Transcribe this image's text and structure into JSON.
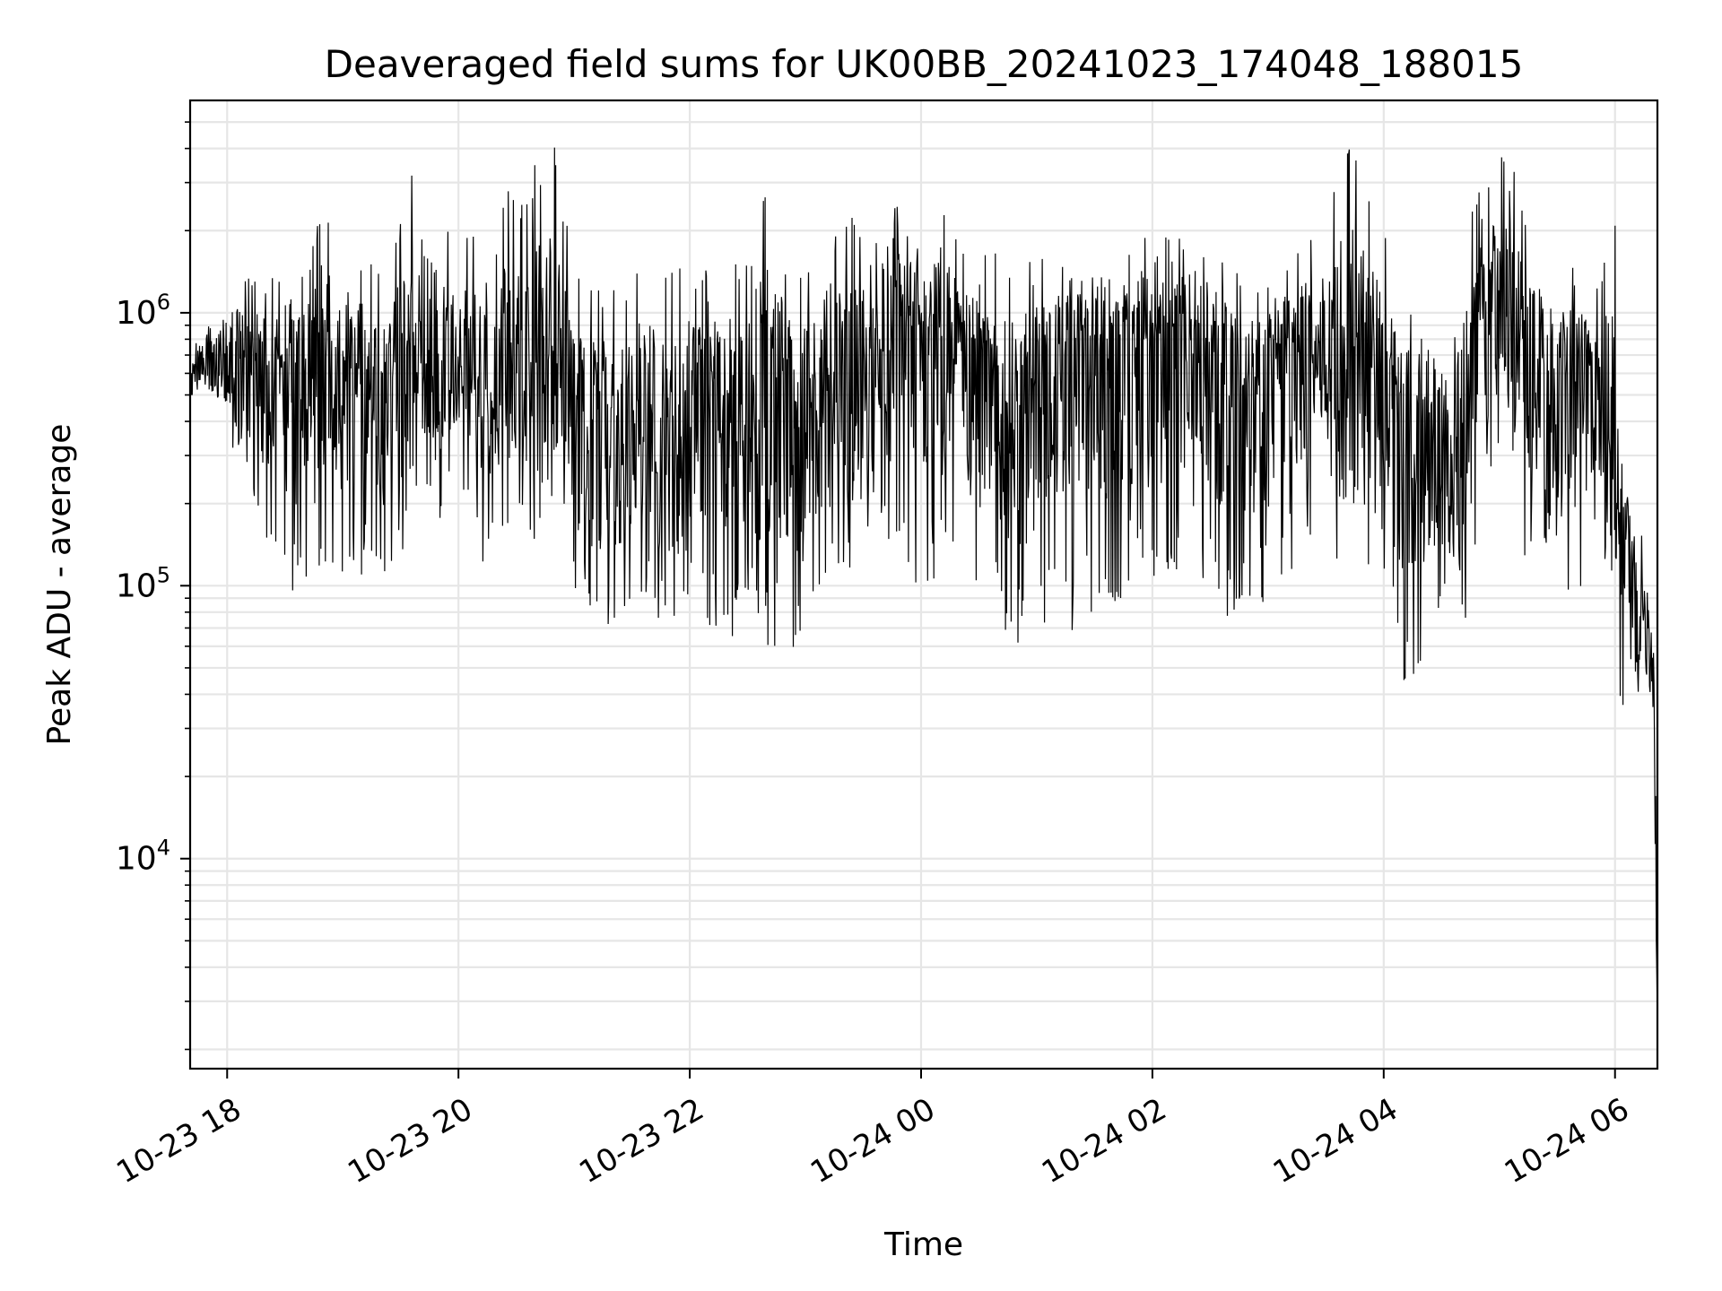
{
  "chart_data": {
    "type": "line",
    "title": "Deaveraged field sums for UK00BB_20241023_174048_188015",
    "xlabel": "Time",
    "ylabel": "Peak ADU - average",
    "x_range": [
      "2024-10-23 17:40:48",
      "2024-10-24 06:22:00"
    ],
    "ylim": [
      1700,
      6000000
    ],
    "yscale": "log",
    "grid": true,
    "xticks": [
      {
        "t": "2024-10-23 18:00",
        "label": "10-23 18"
      },
      {
        "t": "2024-10-23 20:00",
        "label": "10-23 20"
      },
      {
        "t": "2024-10-23 22:00",
        "label": "10-23 22"
      },
      {
        "t": "2024-10-24 00:00",
        "label": "10-24 00"
      },
      {
        "t": "2024-10-24 02:00",
        "label": "10-24 02"
      },
      {
        "t": "2024-10-24 04:00",
        "label": "10-24 04"
      },
      {
        "t": "2024-10-24 06:00",
        "label": "10-24 06"
      }
    ],
    "yticks": [
      {
        "value": 10000,
        "base": "10",
        "exp": "4"
      },
      {
        "value": 100000,
        "base": "10",
        "exp": "5"
      },
      {
        "value": 1000000,
        "base": "10",
        "exp": "6"
      }
    ],
    "series": [
      {
        "color": "#000000",
        "x": [
          "2024-10-23 17:41",
          "2024-10-23 17:50",
          "2024-10-23 18:00",
          "2024-10-23 18:10",
          "2024-10-23 18:20",
          "2024-10-23 18:30",
          "2024-10-23 18:40",
          "2024-10-23 18:50",
          "2024-10-23 19:00",
          "2024-10-23 19:10",
          "2024-10-23 19:20",
          "2024-10-23 19:30",
          "2024-10-23 19:40",
          "2024-10-23 19:50",
          "2024-10-23 20:00",
          "2024-10-23 20:10",
          "2024-10-23 20:20",
          "2024-10-23 20:30",
          "2024-10-23 20:40",
          "2024-10-23 20:50",
          "2024-10-23 21:00",
          "2024-10-23 21:10",
          "2024-10-23 21:20",
          "2024-10-23 21:30",
          "2024-10-23 21:40",
          "2024-10-23 21:50",
          "2024-10-23 22:00",
          "2024-10-23 22:10",
          "2024-10-23 22:20",
          "2024-10-23 22:30",
          "2024-10-23 22:40",
          "2024-10-23 22:50",
          "2024-10-23 23:00",
          "2024-10-23 23:10",
          "2024-10-23 23:20",
          "2024-10-23 23:30",
          "2024-10-23 23:40",
          "2024-10-23 23:50",
          "2024-10-24 00:00",
          "2024-10-24 00:10",
          "2024-10-24 00:20",
          "2024-10-24 00:30",
          "2024-10-24 00:40",
          "2024-10-24 00:50",
          "2024-10-24 01:00",
          "2024-10-24 01:10",
          "2024-10-24 01:20",
          "2024-10-24 01:30",
          "2024-10-24 01:40",
          "2024-10-24 01:50",
          "2024-10-24 02:00",
          "2024-10-24 02:10",
          "2024-10-24 02:20",
          "2024-10-24 02:30",
          "2024-10-24 02:40",
          "2024-10-24 02:50",
          "2024-10-24 03:00",
          "2024-10-24 03:10",
          "2024-10-24 03:20",
          "2024-10-24 03:30",
          "2024-10-24 03:40",
          "2024-10-24 03:50",
          "2024-10-24 04:00",
          "2024-10-24 04:10",
          "2024-10-24 04:20",
          "2024-10-24 04:30",
          "2024-10-24 04:40",
          "2024-10-24 04:50",
          "2024-10-24 05:00",
          "2024-10-24 05:10",
          "2024-10-24 05:20",
          "2024-10-24 05:30",
          "2024-10-24 05:40",
          "2024-10-24 05:50",
          "2024-10-24 06:00",
          "2024-10-24 06:05",
          "2024-10-24 06:10",
          "2024-10-24 06:15",
          "2024-10-24 06:20",
          "2024-10-24 06:22"
        ],
        "median": [
          550000,
          650000,
          700000,
          650000,
          600000,
          550000,
          650000,
          650000,
          600000,
          550000,
          500000,
          600000,
          800000,
          600000,
          600000,
          650000,
          650000,
          550000,
          700000,
          600000,
          450000,
          400000,
          420000,
          400000,
          380000,
          350000,
          450000,
          500000,
          500000,
          450000,
          500000,
          550000,
          500000,
          500000,
          450000,
          550000,
          700000,
          800000,
          900000,
          850000,
          750000,
          650000,
          350000,
          450000,
          600000,
          750000,
          800000,
          800000,
          750000,
          850000,
          800000,
          900000,
          900000,
          900000,
          800000,
          400000,
          700000,
          700000,
          650000,
          700000,
          650000,
          750000,
          600000,
          500000,
          400000,
          350000,
          300000,
          900000,
          1100000,
          900000,
          650000,
          600000,
          650000,
          600000,
          280000,
          150000,
          100000,
          65000,
          45000,
          2500
        ],
        "high": [
          700000,
          1100000,
          1300000,
          1400000,
          1400000,
          1300000,
          1500000,
          2800000,
          1300000,
          1700000,
          1400000,
          2500000,
          4000000,
          2200000,
          1900000,
          2000000,
          3500000,
          2500000,
          3600000,
          4200000,
          1600000,
          1300000,
          1200000,
          1500000,
          1700000,
          1500000,
          1600000,
          1400000,
          1600000,
          1500000,
          3800000,
          1600000,
          1700000,
          1400000,
          2500000,
          2100000,
          1700000,
          3000000,
          1600000,
          2900000,
          1700000,
          1600000,
          1800000,
          1500000,
          1600000,
          1600000,
          1500000,
          1500000,
          1600000,
          2200000,
          1800000,
          2200000,
          1800000,
          1700000,
          1500000,
          1500000,
          1500000,
          1600000,
          2000000,
          2500000,
          4200000,
          3500000,
          2000000,
          1200000,
          1300000,
          1000000,
          2500000,
          2800000,
          3800000,
          3500000,
          1500000,
          1400000,
          1500000,
          1300000,
          2200000,
          500000,
          200000,
          150000,
          100000,
          14000
        ],
        "low": [
          450000,
          420000,
          350000,
          250000,
          110000,
          90000,
          100000,
          95000,
          95000,
          110000,
          105000,
          120000,
          200000,
          170000,
          250000,
          110000,
          140000,
          190000,
          130000,
          200000,
          75000,
          65000,
          60000,
          75000,
          80000,
          65000,
          90000,
          70000,
          55000,
          80000,
          60000,
          60000,
          45000,
          100000,
          120000,
          80000,
          150000,
          110000,
          95000,
          110000,
          130000,
          75000,
          70000,
          60000,
          60000,
          70000,
          65000,
          80000,
          75000,
          110000,
          100000,
          110000,
          120000,
          95000,
          65000,
          85000,
          80000,
          100000,
          130000,
          160000,
          75000,
          120000,
          100000,
          38000,
          55000,
          70000,
          60000,
          160000,
          300000,
          120000,
          150000,
          110000,
          80000,
          150000,
          45000,
          35000,
          30000,
          38000,
          28000,
          2200
        ]
      }
    ]
  }
}
